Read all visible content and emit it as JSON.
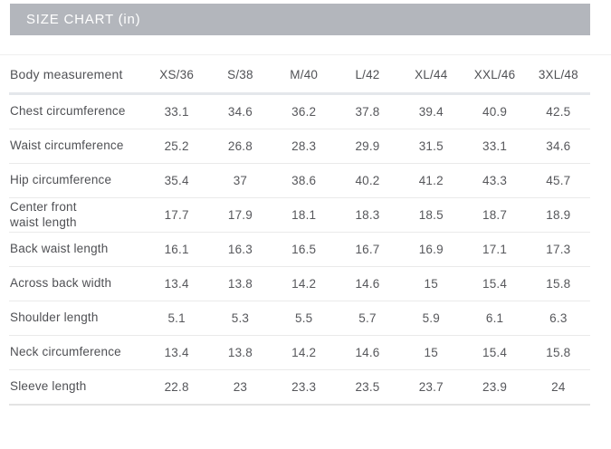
{
  "title_bar": {
    "label": "SIZE CHART (in)"
  },
  "colors": {
    "title_bar_bg": "#b3b6bc",
    "title_bar_text": "#ffffff",
    "table_text": "#55565a",
    "row_separator": "#eaeaea",
    "header_underline": "#e4e7eb"
  },
  "chart_data": {
    "type": "table",
    "title": "SIZE CHART (in)",
    "unit": "in",
    "columns": [
      "Body measurement",
      "XS/36",
      "S/38",
      "M/40",
      "L/42",
      "XL/44",
      "XXL/46",
      "3XL/48"
    ],
    "rows": [
      {
        "label": "Chest circumference",
        "values": [
          33.1,
          34.6,
          36.2,
          37.8,
          39.4,
          40.9,
          42.5
        ]
      },
      {
        "label": "Waist circumference",
        "values": [
          25.2,
          26.8,
          28.3,
          29.9,
          31.5,
          33.1,
          34.6
        ]
      },
      {
        "label": "Hip circumference",
        "values": [
          35.4,
          37,
          38.6,
          40.2,
          41.2,
          43.3,
          45.7
        ]
      },
      {
        "label": "Center front\nwaist length",
        "values": [
          17.7,
          17.9,
          18.1,
          18.3,
          18.5,
          18.7,
          18.9
        ]
      },
      {
        "label": "Back waist length",
        "values": [
          16.1,
          16.3,
          16.5,
          16.7,
          16.9,
          17.1,
          17.3
        ]
      },
      {
        "label": "Across back width",
        "values": [
          13.4,
          13.8,
          14.2,
          14.6,
          15,
          15.4,
          15.8
        ]
      },
      {
        "label": "Shoulder length",
        "values": [
          5.1,
          5.3,
          5.5,
          5.7,
          5.9,
          6.1,
          6.3
        ]
      },
      {
        "label": "Neck circumference",
        "values": [
          13.4,
          13.8,
          14.2,
          14.6,
          15,
          15.4,
          15.8
        ]
      },
      {
        "label": "Sleeve length",
        "values": [
          22.8,
          23,
          23.3,
          23.5,
          23.7,
          23.9,
          24
        ]
      }
    ]
  }
}
